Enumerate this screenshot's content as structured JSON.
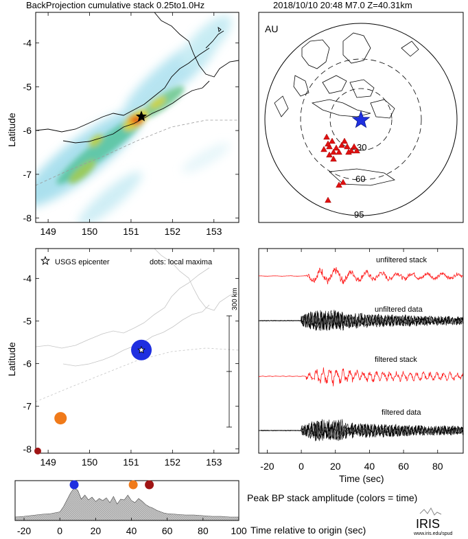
{
  "header": {
    "left_title": "BackProjection cumulative stack 0.25to1.0Hz",
    "right_title": "2018/10/10 20:48  M7.0  Z=40.31km"
  },
  "colors": {
    "stack_red": "#ff1a1a",
    "data_black": "#000000",
    "epicenter_blue": "#1f2fe0",
    "maxima_orange": "#f07a1a",
    "maxima_darkred": "#a01515",
    "array_triangle": "#e01010"
  },
  "chart_data": [
    {
      "type": "heatmap",
      "title": "BackProjection cumulative stack 0.25to1.0Hz",
      "ylabel": "Latitude",
      "xlim": [
        148.7,
        153.6
      ],
      "ylim": [
        -8.1,
        -3.3
      ],
      "xticks": [
        "149",
        "150",
        "151",
        "152",
        "153"
      ],
      "yticks": [
        "-4",
        "-5",
        "-6",
        "-7",
        "-8"
      ],
      "xtick_values": [
        149,
        150,
        151,
        152,
        153
      ],
      "ytick_values": [
        -4,
        -5,
        -6,
        -7,
        -8
      ],
      "epicenter": {
        "lon": 151.25,
        "lat": -5.68,
        "marker": "star"
      },
      "peak": {
        "lon": 151.2,
        "lat": -5.7
      }
    },
    {
      "type": "scatter",
      "projection": "azimuthal",
      "label": "AU",
      "distance_rings_deg": [
        "30",
        "60",
        "95"
      ],
      "source": {
        "marker": "star",
        "color": "#1f2fe0"
      },
      "stations_marker": "triangle"
    },
    {
      "type": "scatter",
      "ylabel": "Latitude",
      "legend": "USGS epicenter",
      "note": "dots: local maxima",
      "scale_bar": "300 km",
      "xlim": [
        148.7,
        153.6
      ],
      "ylim": [
        -8.1,
        -3.3
      ],
      "xticks": [
        "149",
        "150",
        "151",
        "152",
        "153"
      ],
      "yticks": [
        "-4",
        "-5",
        "-6",
        "-7",
        "-8"
      ],
      "xtick_values": [
        149,
        150,
        151,
        152,
        153
      ],
      "ytick_values": [
        -4,
        -5,
        -6,
        -7,
        -8
      ],
      "epicenter": {
        "lon": 151.25,
        "lat": -5.68
      },
      "maxima": [
        {
          "lon": 151.25,
          "lat": -5.68,
          "time_s": 8,
          "color": "#1f2fe0",
          "size": "large"
        },
        {
          "lon": 149.3,
          "lat": -7.28,
          "time_s": 41,
          "color": "#f07a1a",
          "size": "medium"
        },
        {
          "lon": 148.75,
          "lat": -8.05,
          "time_s": 50,
          "color": "#a01515",
          "size": "small"
        }
      ]
    },
    {
      "type": "line",
      "xlabel": "Time (sec)",
      "xlim": [
        -25,
        95
      ],
      "xticks": [
        "-20",
        "0",
        "20",
        "40",
        "60",
        "80"
      ],
      "xtick_values": [
        -20,
        0,
        20,
        40,
        60,
        80
      ],
      "series": [
        {
          "name": "unfiltered stack",
          "color": "#ff1a1a",
          "onset_s": 3,
          "amp": 0.8,
          "density": "low"
        },
        {
          "name": "unfiltered data",
          "color": "#000000",
          "onset_s": 0,
          "amp": 1.0,
          "density": "high"
        },
        {
          "name": "filtered stack",
          "color": "#ff1a1a",
          "onset_s": 3,
          "amp": 0.9,
          "density": "medium"
        },
        {
          "name": "filtered data",
          "color": "#000000",
          "onset_s": 0,
          "amp": 1.0,
          "density": "high"
        }
      ]
    },
    {
      "type": "area",
      "title": "Peak BP stack amplitude (colors = time)",
      "xlabel": "Time relative to origin (sec)",
      "xlim": [
        -25,
        100
      ],
      "xticks": [
        "-20",
        "0",
        "20",
        "40",
        "60",
        "80",
        "100"
      ],
      "xtick_values": [
        -20,
        0,
        20,
        40,
        60,
        80,
        100
      ],
      "x": [
        -25,
        -20,
        -15,
        -10,
        -5,
        0,
        2,
        4,
        6,
        8,
        10,
        12,
        14,
        16,
        18,
        20,
        22,
        24,
        26,
        28,
        30,
        32,
        34,
        36,
        38,
        40,
        42,
        44,
        46,
        48,
        50,
        52,
        54,
        56,
        58,
        60,
        65,
        70,
        75,
        80,
        85,
        90,
        95,
        100
      ],
      "values": [
        0.1,
        0.12,
        0.15,
        0.18,
        0.2,
        0.25,
        0.4,
        0.6,
        0.8,
        0.95,
        0.88,
        0.62,
        0.74,
        0.6,
        0.68,
        0.55,
        0.64,
        0.58,
        0.66,
        0.52,
        0.7,
        0.48,
        0.62,
        0.6,
        0.74,
        0.58,
        0.52,
        0.64,
        0.56,
        0.46,
        0.4,
        0.36,
        0.3,
        0.26,
        0.22,
        0.2,
        0.18,
        0.16,
        0.16,
        0.14,
        0.12,
        0.12,
        0.1,
        0.1
      ],
      "markers": [
        {
          "time_s": 8,
          "color": "#1f2fe0"
        },
        {
          "time_s": 41,
          "color": "#f07a1a"
        },
        {
          "time_s": 50,
          "color": "#a01515"
        }
      ]
    }
  ],
  "branding": {
    "logo_text": "IRIS",
    "url": "www.iris.edu/spud"
  }
}
